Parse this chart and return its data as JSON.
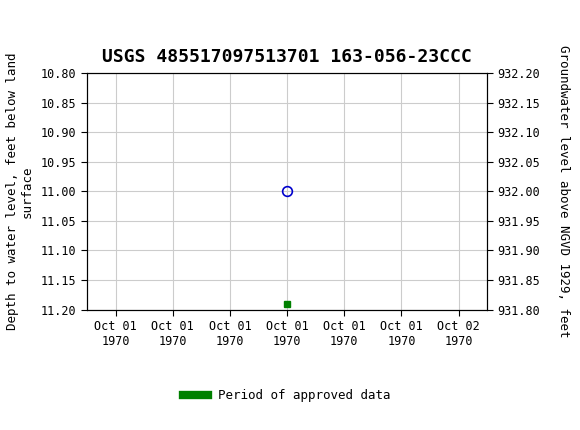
{
  "title": "USGS 485517097513701 163-056-23CCC",
  "ylabel_left": "Depth to water level, feet below land\nsurface",
  "ylabel_right": "Groundwater level above NGVD 1929, feet",
  "ylim_left": [
    10.8,
    11.2
  ],
  "ylim_right": [
    931.8,
    932.2
  ],
  "yticks_left": [
    10.8,
    10.85,
    10.9,
    10.95,
    11.0,
    11.05,
    11.1,
    11.15,
    11.2
  ],
  "yticks_right": [
    931.8,
    931.85,
    931.9,
    931.95,
    932.0,
    932.05,
    932.1,
    932.15,
    932.2
  ],
  "xtick_labels": [
    "Oct 01\n1970",
    "Oct 01\n1970",
    "Oct 01\n1970",
    "Oct 01\n1970",
    "Oct 01\n1970",
    "Oct 01\n1970",
    "Oct 02\n1970"
  ],
  "xtick_positions": [
    0,
    1,
    2,
    3,
    4,
    5,
    6
  ],
  "xlim": [
    -0.5,
    6.5
  ],
  "data_point_x": 3,
  "data_point_y": 11.0,
  "data_point_color": "#0000cc",
  "data_point_marker": "o",
  "approved_point_x": 3,
  "approved_point_y": 11.19,
  "approved_point_color": "#008000",
  "approved_point_marker": "s",
  "legend_label": "Period of approved data",
  "legend_color": "#008000",
  "header_color": "#1a6b3c",
  "grid_color": "#cccccc",
  "bg_color": "#ffffff",
  "font_family": "monospace",
  "title_fontsize": 13,
  "axis_label_fontsize": 9,
  "tick_fontsize": 8.5
}
